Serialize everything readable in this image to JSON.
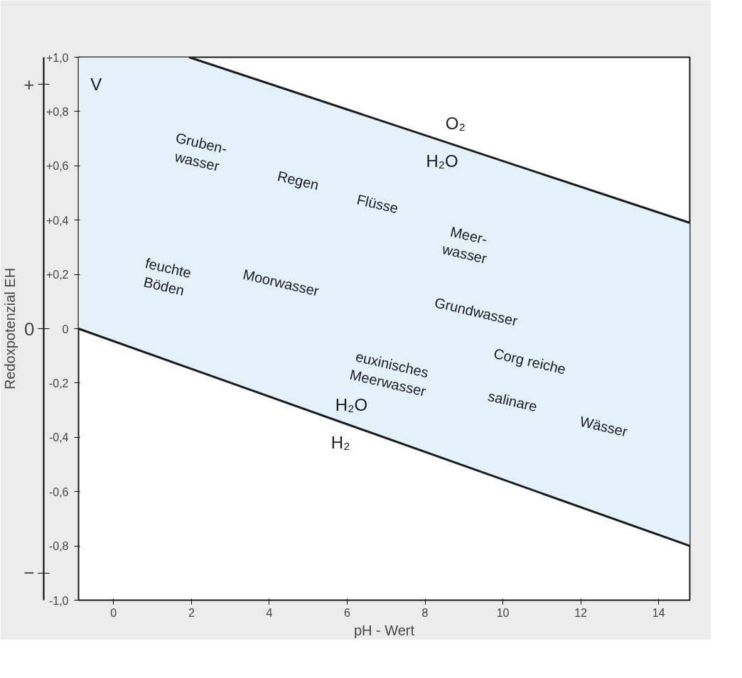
{
  "chart_data": {
    "type": "line",
    "xlabel": "pH - Wert",
    "ylabel": "Redoxpotenzial EH",
    "xlim": [
      -0.9,
      14.8
    ],
    "ylim": [
      -1.0,
      1.0
    ],
    "xticks": [
      0,
      2,
      4,
      6,
      8,
      10,
      12,
      14
    ],
    "yticks": [
      {
        "value": 1.0,
        "label": "+1,0"
      },
      {
        "value": 0.8,
        "label": "+0,8"
      },
      {
        "value": 0.6,
        "label": "+0,6"
      },
      {
        "value": 0.4,
        "label": "+0,4"
      },
      {
        "value": 0.2,
        "label": "+0,2"
      },
      {
        "value": 0,
        "label": "0"
      },
      {
        "value": -0.2,
        "label": "-0,2"
      },
      {
        "value": -0.4,
        "label": "-0,4"
      },
      {
        "value": -0.6,
        "label": "-0,6"
      },
      {
        "value": -0.8,
        "label": "-0,8"
      },
      {
        "value": -1.0,
        "label": "-1,0"
      }
    ],
    "grid": false,
    "series": [
      {
        "color": "#1a1a1a",
        "x": [
          1.94,
          14.8
        ],
        "values": [
          1.0,
          0.39
        ]
      },
      {
        "color": "#1a1a1a",
        "x": [
          -0.9,
          1.94,
          14.8
        ],
        "values": [
          0,
          -0.145,
          -0.8
        ],
        "lower": [
          0,
          -0.145,
          -0.8
        ],
        "upper": [
          1.0,
          1.0,
          0.39
        ]
      }
    ],
    "annotations": [
      "V",
      "+",
      "0",
      "−",
      "O₂",
      "H₂O",
      "H₂O",
      "H₂",
      "Gruben-\nwasser",
      "Regen",
      "Flüsse",
      "Meer-\nwasser",
      "feuchte\nBöden",
      "Moorwasser",
      "Grundwasser",
      "euxinisches\nMeerwasser",
      "Corg reiche",
      "salinare",
      "Wässer"
    ]
  }
}
